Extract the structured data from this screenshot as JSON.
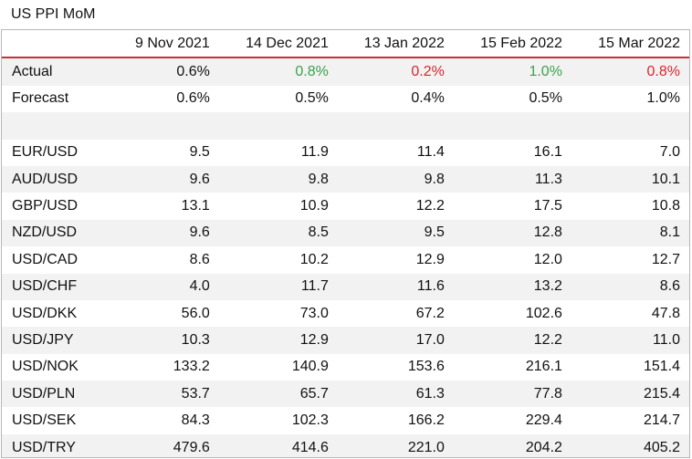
{
  "title": "US PPI MoM",
  "colors": {
    "header_rule": "#c9313a",
    "positive": "#3aa24a",
    "negative": "#d9262c",
    "band": "#f2f2f2"
  },
  "columns": [
    "9 Nov 2021",
    "14 Dec 2021",
    "13 Jan 2022",
    "15 Feb 2022",
    "15 Mar 2022"
  ],
  "actual": {
    "label": "Actual",
    "values": [
      "0.6%",
      "0.8%",
      "0.2%",
      "1.0%",
      "0.8%"
    ],
    "tones": [
      "neutral",
      "positive",
      "negative",
      "positive",
      "negative"
    ]
  },
  "forecast": {
    "label": "Forecast",
    "values": [
      "0.6%",
      "0.5%",
      "0.4%",
      "0.5%",
      "1.0%"
    ]
  },
  "pairs": [
    {
      "label": "EUR/USD",
      "values": [
        "9.5",
        "11.9",
        "11.4",
        "16.1",
        "7.0"
      ]
    },
    {
      "label": "AUD/USD",
      "values": [
        "9.6",
        "9.8",
        "9.8",
        "11.3",
        "10.1"
      ]
    },
    {
      "label": "GBP/USD",
      "values": [
        "13.1",
        "10.9",
        "12.2",
        "17.5",
        "10.8"
      ]
    },
    {
      "label": "NZD/USD",
      "values": [
        "9.6",
        "8.5",
        "9.5",
        "12.8",
        "8.1"
      ]
    },
    {
      "label": "USD/CAD",
      "values": [
        "8.6",
        "10.2",
        "12.9",
        "12.0",
        "12.7"
      ]
    },
    {
      "label": "USD/CHF",
      "values": [
        "4.0",
        "11.7",
        "11.6",
        "13.2",
        "8.6"
      ]
    },
    {
      "label": "USD/DKK",
      "values": [
        "56.0",
        "73.0",
        "67.2",
        "102.6",
        "47.8"
      ]
    },
    {
      "label": "USD/JPY",
      "values": [
        "10.3",
        "12.9",
        "17.0",
        "12.2",
        "11.0"
      ]
    },
    {
      "label": "USD/NOK",
      "values": [
        "133.2",
        "140.9",
        "153.6",
        "216.1",
        "151.4"
      ]
    },
    {
      "label": "USD/PLN",
      "values": [
        "53.7",
        "65.7",
        "61.3",
        "77.8",
        "215.4"
      ]
    },
    {
      "label": "USD/SEK",
      "values": [
        "84.3",
        "102.3",
        "166.2",
        "229.4",
        "214.7"
      ]
    },
    {
      "label": "USD/TRY",
      "values": [
        "479.6",
        "414.6",
        "221.0",
        "204.2",
        "405.2"
      ]
    }
  ]
}
